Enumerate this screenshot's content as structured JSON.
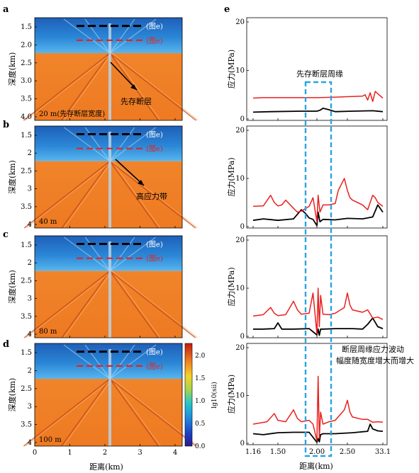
{
  "panel_letters": [
    "a",
    "b",
    "c",
    "d",
    "e"
  ],
  "left_panels": {
    "ylabel": "深度(km)",
    "xlabel": "距离(km)",
    "y_ticks": [
      "1.5",
      "2.0",
      "2.5",
      "3.0",
      "3.5",
      "4.0"
    ],
    "y_ticks_short": [
      "1.5",
      "2",
      "2.5",
      "3",
      "3.5",
      "4"
    ],
    "x_ticks": [
      "0",
      "1",
      "2",
      "3",
      "4"
    ],
    "line_labels": {
      "black": "(图e)",
      "red": "(图e)"
    },
    "widths": [
      "20 m(先存断层宽度)",
      "40 m",
      "80 m",
      "100 m"
    ],
    "annotations": {
      "fault": "先存断层",
      "high_stress": "高应力带"
    }
  },
  "colorbar": {
    "label": "lg10(sii)",
    "ticks": [
      "0.0",
      "0.5",
      "1.0",
      "1.5",
      "2.0"
    ],
    "range": [
      0.0,
      2.25
    ]
  },
  "chart_data": {
    "type": "line",
    "xlabel": "距离(km)",
    "ylabel": "应力(MPa)",
    "x_ticks": [
      "1.16",
      "1.50",
      "2.00",
      "2.50",
      "33.1"
    ],
    "y_ticks": [
      "0",
      "10",
      "20"
    ],
    "ylim": [
      0,
      20
    ],
    "colors": {
      "red": "#e8211f",
      "black": "#000000",
      "box": "#2aa4e0"
    },
    "annotations": {
      "box_label": "先存断层周缘",
      "note_line1": "断层周缘应力波动",
      "note_line2": "幅度随宽度增大而增大"
    },
    "panels": [
      {
        "width": "20 m",
        "red": {
          "x": [
            1.16,
            1.3,
            1.6,
            2.0,
            2.3,
            2.5,
            2.8,
            2.85,
            2.9,
            2.95,
            3.0,
            3.05,
            3.1,
            3.2
          ],
          "y": [
            4.3,
            4.4,
            4.4,
            4.4,
            4.5,
            4.6,
            4.7,
            5.0,
            3.9,
            5.4,
            3.6,
            5.7,
            5.2,
            4.3
          ]
        },
        "black": {
          "x": [
            1.16,
            1.4,
            1.8,
            2.0,
            2.05,
            2.1,
            2.2,
            2.3,
            2.6,
            3.0,
            3.2
          ],
          "y": [
            1.4,
            1.5,
            1.6,
            1.6,
            1.8,
            2.2,
            1.9,
            1.5,
            1.6,
            1.7,
            1.5
          ]
        }
      },
      {
        "width": "40 m",
        "red": {
          "x": [
            1.16,
            1.3,
            1.4,
            1.45,
            1.5,
            1.55,
            1.6,
            1.7,
            1.75,
            1.8,
            1.9,
            1.95,
            2.0,
            2.02,
            2.05,
            2.1,
            2.2,
            2.3,
            2.35,
            2.45,
            2.5,
            2.55,
            2.6,
            2.8,
            2.9,
            3.0,
            3.05,
            3.1,
            3.2
          ],
          "y": [
            4.2,
            4.3,
            6.5,
            5.0,
            4.3,
            4.5,
            5.5,
            3.8,
            3.0,
            3.2,
            4.2,
            6.0,
            1.0,
            6.5,
            3.0,
            4.5,
            4.5,
            4.8,
            7.5,
            10.0,
            7.5,
            6.0,
            5.5,
            4.5,
            3.5,
            6.5,
            6.0,
            5.0,
            4.2
          ]
        },
        "black": {
          "x": [
            1.16,
            1.3,
            1.5,
            1.7,
            1.8,
            1.85,
            1.9,
            1.95,
            2.0,
            2.02,
            2.05,
            2.1,
            2.3,
            2.5,
            2.8,
            3.0,
            3.1,
            3.2
          ],
          "y": [
            1.3,
            1.6,
            1.3,
            1.6,
            3.5,
            2.8,
            1.8,
            1.5,
            0.2,
            3.0,
            1.0,
            1.5,
            1.4,
            1.7,
            1.6,
            2.0,
            4.5,
            3.0
          ]
        }
      },
      {
        "width": "80 m",
        "red": {
          "x": [
            1.16,
            1.3,
            1.4,
            1.45,
            1.5,
            1.6,
            1.7,
            1.75,
            1.8,
            1.9,
            1.95,
            2.0,
            2.02,
            2.04,
            2.06,
            2.1,
            2.2,
            2.3,
            2.45,
            2.5,
            2.55,
            2.6,
            2.8,
            2.9,
            3.0,
            3.1,
            3.2
          ],
          "y": [
            4.2,
            4.5,
            6.0,
            4.8,
            4.3,
            4.5,
            7.3,
            5.5,
            4.6,
            4.8,
            9.0,
            0.5,
            10.0,
            2.0,
            8.5,
            4.6,
            4.5,
            4.8,
            6.0,
            9.0,
            6.5,
            5.5,
            5.0,
            5.5,
            3.8,
            4.0,
            3.5
          ]
        },
        "black": {
          "x": [
            1.16,
            1.3,
            1.45,
            1.5,
            1.55,
            1.7,
            1.9,
            2.0,
            2.02,
            2.04,
            2.06,
            2.1,
            2.3,
            2.6,
            2.8,
            2.9,
            3.0,
            3.1,
            3.2
          ],
          "y": [
            1.5,
            1.5,
            1.6,
            2.8,
            1.5,
            1.5,
            1.6,
            0.3,
            1.5,
            0.2,
            1.5,
            1.5,
            1.6,
            1.6,
            1.5,
            2.5,
            3.8,
            2.0,
            1.6
          ]
        }
      },
      {
        "width": "100 m",
        "red": {
          "x": [
            1.16,
            1.35,
            1.45,
            1.5,
            1.6,
            1.7,
            1.75,
            1.8,
            1.9,
            1.95,
            2.0,
            2.02,
            2.04,
            2.06,
            2.1,
            2.2,
            2.3,
            2.45,
            2.5,
            2.55,
            2.6,
            2.8,
            2.9,
            3.0,
            3.1,
            3.2
          ],
          "y": [
            4.0,
            4.5,
            6.2,
            4.8,
            4.5,
            7.0,
            5.2,
            4.5,
            4.8,
            4.0,
            0.5,
            14.0,
            1.0,
            6.5,
            4.0,
            4.5,
            4.8,
            7.0,
            9.0,
            6.5,
            5.5,
            5.0,
            5.0,
            4.4,
            4.5,
            4.4
          ]
        },
        "black": {
          "x": [
            1.16,
            1.3,
            1.5,
            1.7,
            1.9,
            2.0,
            2.02,
            2.04,
            2.06,
            2.1,
            2.3,
            2.6,
            2.9,
            2.95,
            3.0,
            3.1,
            3.2
          ],
          "y": [
            2.0,
            1.8,
            2.2,
            2.3,
            2.3,
            0.2,
            1.0,
            0.3,
            1.8,
            2.0,
            2.0,
            2.2,
            2.5,
            4.0,
            3.0,
            2.6,
            2.5
          ]
        }
      }
    ]
  }
}
